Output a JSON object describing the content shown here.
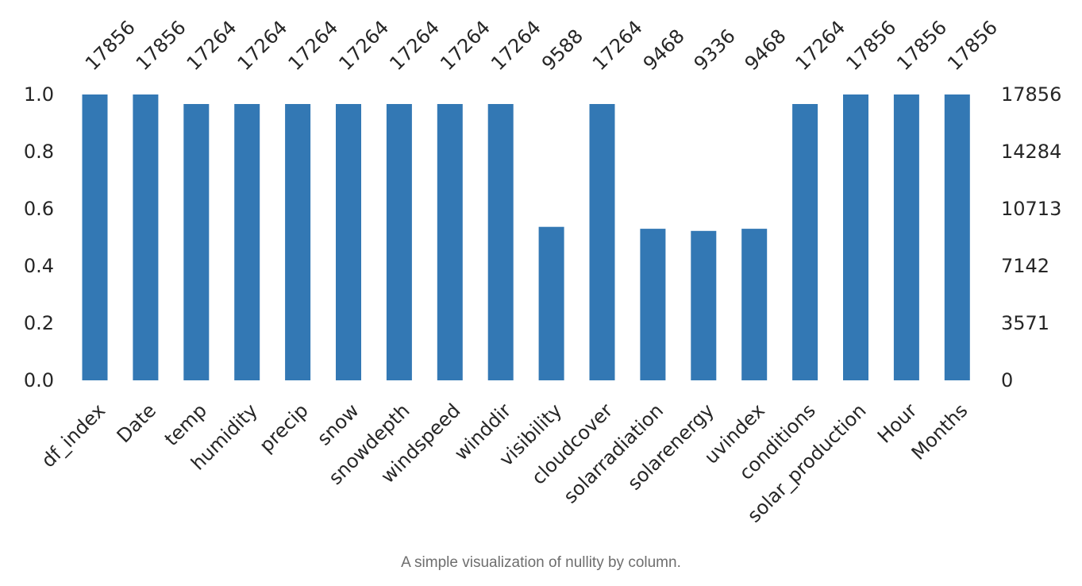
{
  "caption": "A simple visualization of nullity by column.",
  "colors": {
    "bar": "#3378b4",
    "text": "#262626",
    "caption": "#6e6e6e"
  },
  "chart_data": {
    "type": "bar",
    "title": "",
    "xlabel": "",
    "ylabel": "",
    "categories": [
      "df_index",
      "Date",
      "temp",
      "humidity",
      "precip",
      "snow",
      "snowdepth",
      "windspeed",
      "winddir",
      "visibility",
      "cloudcover",
      "solarradiation",
      "solarenergy",
      "uvindex",
      "conditions",
      "solar_production",
      "Hour",
      "Months"
    ],
    "values": [
      1.0,
      1.0,
      0.9668,
      0.9668,
      0.9668,
      0.9668,
      0.9668,
      0.9668,
      0.9668,
      0.537,
      0.9668,
      0.5302,
      0.5228,
      0.5302,
      0.9668,
      1.0,
      1.0,
      1.0
    ],
    "counts": [
      17856,
      17856,
      17264,
      17264,
      17264,
      17264,
      17264,
      17264,
      17264,
      9588,
      17264,
      9468,
      9336,
      9468,
      17264,
      17856,
      17856,
      17856
    ],
    "ylim": [
      0,
      1
    ],
    "left_ticks": [
      "0.0",
      "0.2",
      "0.4",
      "0.6",
      "0.8",
      "1.0"
    ],
    "right_ticks": [
      "0",
      "3571",
      "7142",
      "10713",
      "14284",
      "17856"
    ],
    "grid": false,
    "legend": "none"
  }
}
